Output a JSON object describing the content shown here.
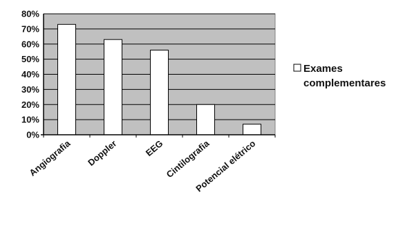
{
  "chart_data": {
    "type": "bar",
    "categories": [
      "Angiografia",
      "Doppler",
      "EEG",
      "Cintilografia",
      "Potencial elétrico"
    ],
    "series": [
      {
        "name": "Exames complementares",
        "values": [
          73,
          63,
          56,
          20,
          7
        ]
      }
    ],
    "yticks": [
      "0%",
      "10%",
      "20%",
      "30%",
      "40%",
      "50%",
      "60%",
      "70%",
      "80%"
    ],
    "ylim": [
      0,
      80
    ],
    "grid": true,
    "legend_position": "right",
    "legend_lines": [
      "Exames",
      "complementares"
    ],
    "colors": {
      "plot_background": "#c0c0c0",
      "bar_fill": "#ffffff",
      "bar_stroke": "#000000",
      "gridline": "#000000"
    }
  }
}
